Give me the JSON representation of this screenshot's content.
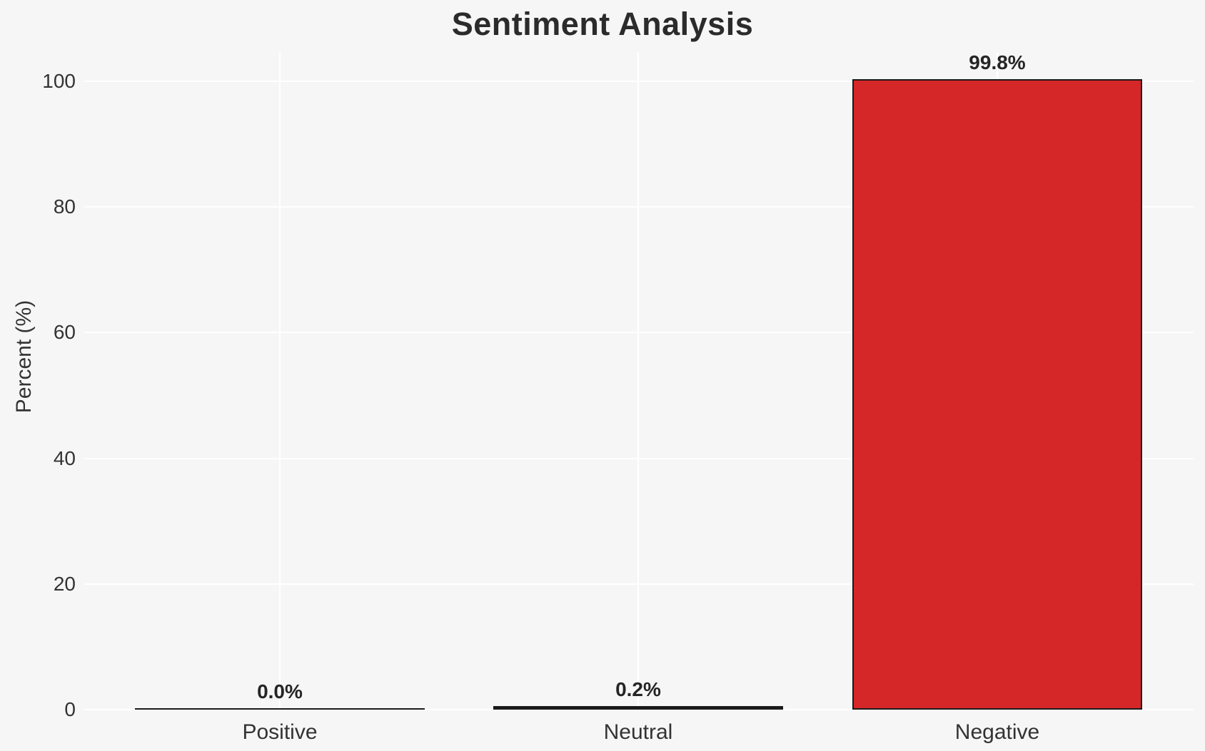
{
  "figure": {
    "background_color": "#f6f6f6",
    "gridline_color": "#ffffff",
    "text_color": "#333333",
    "title_color": "#2b2b2b"
  },
  "chart_data": {
    "type": "bar",
    "title": "Sentiment Analysis",
    "xlabel": "",
    "ylabel": "Percent (%)",
    "categories": [
      "Positive",
      "Neutral",
      "Negative"
    ],
    "values": [
      0.0,
      0.2,
      99.8
    ],
    "value_labels": [
      "0.0%",
      "0.2%",
      "99.8%"
    ],
    "bar_colors": [
      null,
      null,
      "#d62728"
    ],
    "bar_edge_color": "#1a1a1a",
    "yticks": [
      0,
      20,
      40,
      60,
      80,
      100
    ],
    "ylim": [
      0,
      104
    ],
    "grid": "white gridlines, horizontal at yticks and vertical at category centers",
    "legend": "none"
  }
}
